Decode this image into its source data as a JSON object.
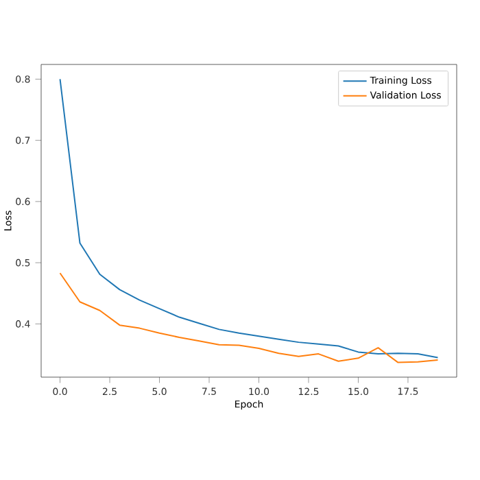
{
  "chart_data": {
    "type": "line",
    "xlabel": "Epoch",
    "ylabel": "Loss",
    "x": [
      0,
      1,
      2,
      3,
      4,
      5,
      6,
      7,
      8,
      9,
      10,
      11,
      12,
      13,
      14,
      15,
      16,
      17,
      18,
      19
    ],
    "series": [
      {
        "name": "Training Loss",
        "color": "#1f77b4",
        "values": [
          0.8,
          0.532,
          0.481,
          0.456,
          0.439,
          0.425,
          0.411,
          0.401,
          0.391,
          0.385,
          0.38,
          0.375,
          0.37,
          0.367,
          0.364,
          0.354,
          0.351,
          0.352,
          0.351,
          0.345
        ]
      },
      {
        "name": "Validation Loss",
        "color": "#ff7f0e",
        "values": [
          0.483,
          0.436,
          0.422,
          0.398,
          0.393,
          0.385,
          0.378,
          0.372,
          0.366,
          0.365,
          0.36,
          0.352,
          0.347,
          0.351,
          0.339,
          0.344,
          0.361,
          0.337,
          0.338,
          0.341
        ]
      }
    ],
    "xlim": [
      -0.95,
      19.95
    ],
    "ylim": [
      0.313,
      0.824
    ],
    "xticks": [
      {
        "value": 0,
        "label": "0.0"
      },
      {
        "value": 2.5,
        "label": "2.5"
      },
      {
        "value": 5,
        "label": "5.0"
      },
      {
        "value": 7.5,
        "label": "7.5"
      },
      {
        "value": 10,
        "label": "10.0"
      },
      {
        "value": 12.5,
        "label": "12.5"
      },
      {
        "value": 15,
        "label": "15.0"
      },
      {
        "value": 17.5,
        "label": "17.5"
      }
    ],
    "yticks": [
      {
        "value": 0.4,
        "label": "0.4"
      },
      {
        "value": 0.5,
        "label": "0.5"
      },
      {
        "value": 0.6,
        "label": "0.6"
      },
      {
        "value": 0.7,
        "label": "0.7"
      },
      {
        "value": 0.8,
        "label": "0.8"
      }
    ],
    "legend": "top right",
    "grid": false,
    "marker": "none",
    "line_style": "solid"
  }
}
